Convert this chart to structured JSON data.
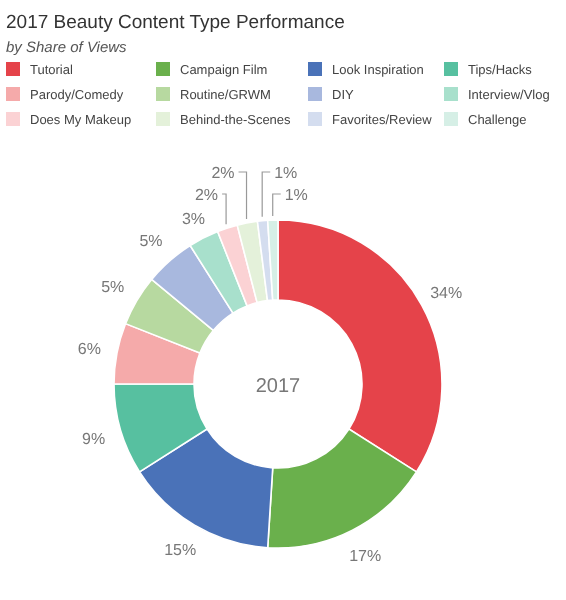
{
  "chart_data": {
    "type": "donut",
    "title": "2017 Beauty Content Type Performance",
    "subtitle": "by Share of Views",
    "categories": [
      "Tutorial",
      "Campaign Film",
      "Look Inspiration",
      "Tips/Hacks",
      "Parody/Comedy",
      "Routine/GRWM",
      "DIY",
      "Interview/Vlog",
      "Does My Makeup",
      "Behind-the-Scenes",
      "Favorites/Review",
      "Challenge"
    ],
    "values": [
      34,
      17,
      15,
      9,
      6,
      5,
      5,
      3,
      2,
      2,
      1,
      1
    ],
    "value_labels": [
      "34%",
      "17%",
      "15%",
      "9%",
      "6%",
      "5%",
      "5%",
      "3%",
      "2%",
      "2%",
      "1%",
      "1%"
    ],
    "colors": [
      "#e5434a",
      "#6ab04c",
      "#4a72b8",
      "#57c0a0",
      "#f5aaaa",
      "#b7d9a0",
      "#a8b8de",
      "#a8e0cc",
      "#fbd2d4",
      "#e4f1da",
      "#d4ddef",
      "#d6efe6"
    ],
    "annotations": [
      "2017"
    ],
    "legend": "top"
  }
}
